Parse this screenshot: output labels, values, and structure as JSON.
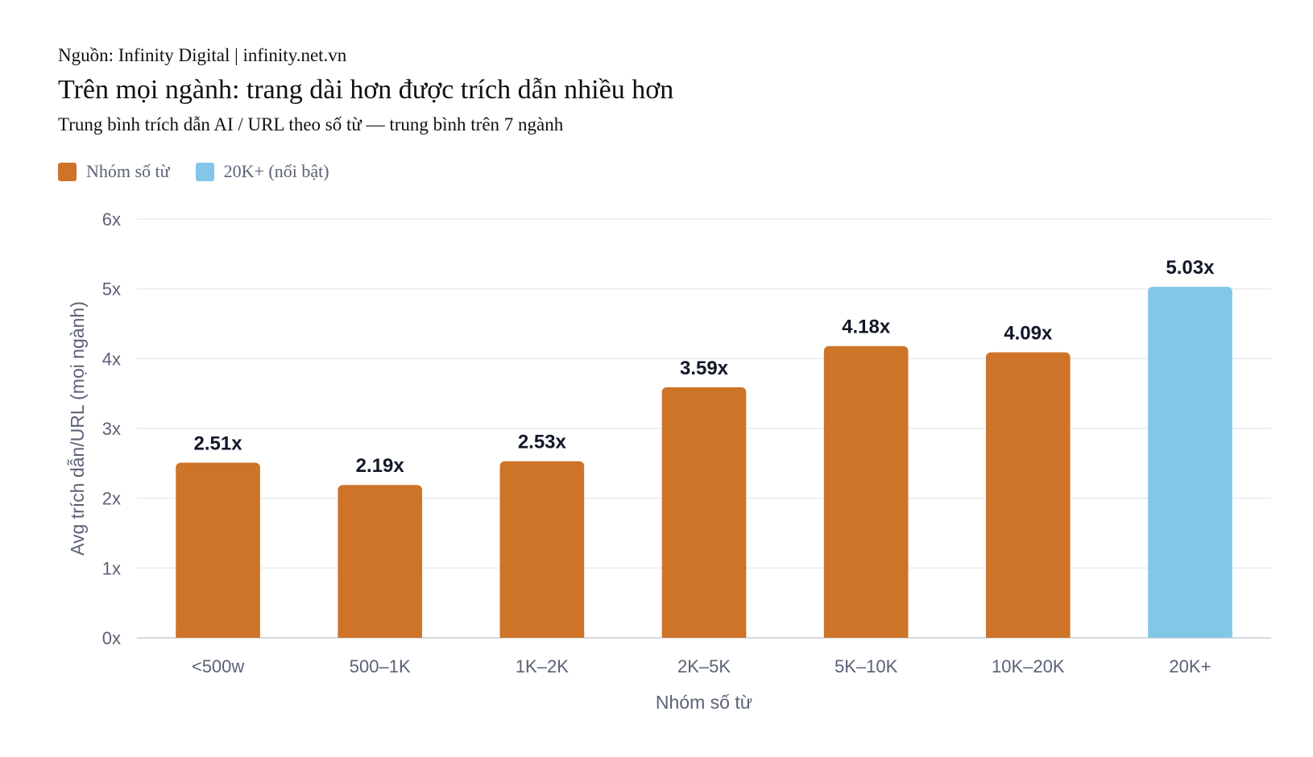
{
  "header": {
    "source": "Nguồn: Infinity Digital | infinity.net.vn",
    "title": "Trên mọi ngành: trang dài hơn được trích dẫn nhiều hơn",
    "subtitle": "Trung bình trích dẫn AI / URL theo số từ — trung bình trên 7 ngành"
  },
  "legend": [
    {
      "label": "Nhóm số từ",
      "color": "#CD7429"
    },
    {
      "label": "20K+ (nổi bật)",
      "color": "#82C7E8"
    }
  ],
  "chart_data": {
    "type": "bar",
    "title": "Trên mọi ngành: trang dài hơn được trích dẫn nhiều hơn",
    "subtitle": "Trung bình trích dẫn AI / URL theo số từ — trung bình trên 7 ngành",
    "xlabel": "Nhóm số từ",
    "ylabel": "Avg trích dẫn/URL (mọi ngành)",
    "categories": [
      "<500w",
      "500–1K",
      "1K–2K",
      "2K–5K",
      "5K–10K",
      "10K–20K",
      "20K+"
    ],
    "values": [
      2.51,
      2.19,
      2.53,
      3.59,
      4.18,
      4.09,
      5.03
    ],
    "data_labels": [
      "2.51x",
      "2.19x",
      "2.53x",
      "3.59x",
      "4.18x",
      "4.09x",
      "5.03x"
    ],
    "highlight_index": 6,
    "colors": {
      "default": "#CD7429",
      "highlight": "#82C7E8"
    },
    "ylim": [
      0,
      6
    ],
    "yticks": [
      0,
      1,
      2,
      3,
      4,
      5,
      6
    ],
    "ytick_labels": [
      "0x",
      "1x",
      "2x",
      "3x",
      "4x",
      "5x",
      "6x"
    ],
    "grid": true,
    "legend_position": "top-left"
  }
}
